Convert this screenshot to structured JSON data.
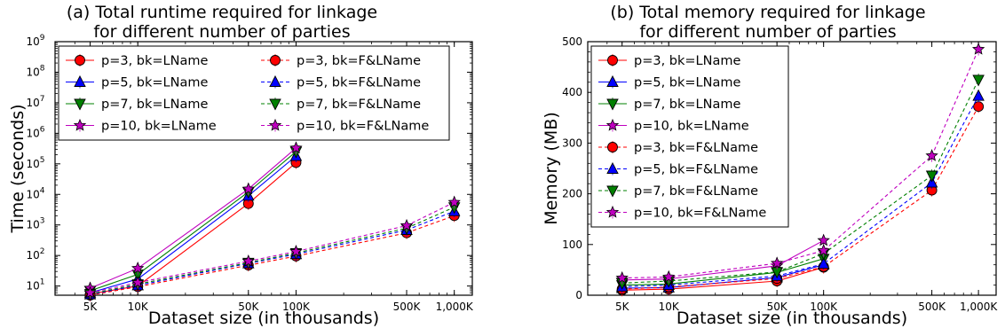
{
  "chart_data": [
    {
      "type": "line",
      "title": "(a) Total runtime required for linkage\nfor different number of parties",
      "xlabel": "Dataset size (in thousands)",
      "ylabel": "Time (seconds)",
      "xscale": "log",
      "yscale": "log",
      "xlim": [
        3000,
        1300000
      ],
      "ylim": [
        5,
        1000000000
      ],
      "xticks": [
        {
          "value": 5000,
          "label": "5K"
        },
        {
          "value": 10000,
          "label": "10K"
        },
        {
          "value": 50000,
          "label": "50K"
        },
        {
          "value": 100000,
          "label": "100K"
        },
        {
          "value": 500000,
          "label": "500K"
        },
        {
          "value": 1000000,
          "label": "1,000K"
        }
      ],
      "yticks": [
        {
          "value": 10,
          "base": "10",
          "exp": "1"
        },
        {
          "value": 100,
          "base": "10",
          "exp": "2"
        },
        {
          "value": 1000,
          "base": "10",
          "exp": "3"
        },
        {
          "value": 10000,
          "base": "10",
          "exp": "4"
        },
        {
          "value": 100000,
          "base": "10",
          "exp": "5"
        },
        {
          "value": 1000000,
          "base": "10",
          "exp": "6"
        },
        {
          "value": 10000000,
          "base": "10",
          "exp": "7"
        },
        {
          "value": 100000000,
          "base": "10",
          "exp": "8"
        },
        {
          "value": 1000000000,
          "base": "10",
          "exp": "9"
        }
      ],
      "legend": {
        "placement": "top-left",
        "columns": 2
      },
      "series": [
        {
          "name": "p=3, bk=LName",
          "color": "#ff0000",
          "marker": "circle",
          "dashed": false,
          "x": [
            5000,
            10000,
            50000,
            100000
          ],
          "y": [
            5.5,
            10,
            5000,
            110000
          ]
        },
        {
          "name": "p=5, bk=LName",
          "color": "#0000ff",
          "marker": "triangle-up",
          "dashed": false,
          "x": [
            5000,
            10000,
            50000,
            100000
          ],
          "y": [
            6,
            17,
            9000,
            180000
          ]
        },
        {
          "name": "p=7, bk=LName",
          "color": "#008000",
          "marker": "triangle-down",
          "dashed": false,
          "x": [
            5000,
            10000,
            50000,
            100000
          ],
          "y": [
            7,
            24,
            12000,
            250000
          ]
        },
        {
          "name": "p=10, bk=LName",
          "color": "#bf00bf",
          "marker": "star",
          "dashed": false,
          "x": [
            5000,
            10000,
            50000,
            100000
          ],
          "y": [
            8.5,
            38,
            15000,
            330000
          ]
        },
        {
          "name": "p=3, bk=F&LName",
          "color": "#ff0000",
          "marker": "circle",
          "dashed": true,
          "x": [
            5000,
            10000,
            50000,
            100000,
            500000,
            1000000
          ],
          "y": [
            5,
            9.5,
            48,
            95,
            550,
            2000
          ]
        },
        {
          "name": "p=5, bk=F&LName",
          "color": "#0000ff",
          "marker": "triangle-up",
          "dashed": true,
          "x": [
            5000,
            10000,
            50000,
            100000,
            500000,
            1000000
          ],
          "y": [
            5.3,
            10.5,
            55,
            110,
            680,
            2800
          ]
        },
        {
          "name": "p=7, bk=F&LName",
          "color": "#008000",
          "marker": "triangle-down",
          "dashed": true,
          "x": [
            5000,
            10000,
            50000,
            100000,
            500000,
            1000000
          ],
          "y": [
            5.5,
            11.5,
            58,
            120,
            780,
            3800
          ]
        },
        {
          "name": "p=10, bk=F&LName",
          "color": "#bf00bf",
          "marker": "star",
          "dashed": true,
          "x": [
            5000,
            10000,
            50000,
            100000,
            500000,
            1000000
          ],
          "y": [
            6,
            13,
            65,
            135,
            950,
            5500
          ]
        }
      ]
    },
    {
      "type": "line",
      "title": "(b) Total memory required for linkage\nfor different number of parties",
      "xlabel": "Dataset size (in thousands)",
      "ylabel": "Memory (MB)",
      "xscale": "log",
      "yscale": "linear",
      "xlim": [
        3000,
        1300000
      ],
      "ylim": [
        0,
        500
      ],
      "xticks": [
        {
          "value": 5000,
          "label": "5K"
        },
        {
          "value": 10000,
          "label": "10K"
        },
        {
          "value": 50000,
          "label": "50K"
        },
        {
          "value": 100000,
          "label": "100K"
        },
        {
          "value": 500000,
          "label": "500K"
        },
        {
          "value": 1000000,
          "label": "1,000K"
        }
      ],
      "yticks": [
        {
          "value": 0,
          "label": "0"
        },
        {
          "value": 100,
          "label": "100"
        },
        {
          "value": 200,
          "label": "200"
        },
        {
          "value": 300,
          "label": "300"
        },
        {
          "value": 400,
          "label": "400"
        },
        {
          "value": 500,
          "label": "500"
        }
      ],
      "legend": {
        "placement": "top-left",
        "columns": 1
      },
      "series": [
        {
          "name": "p=3, bk=LName",
          "color": "#ff0000",
          "marker": "circle",
          "dashed": false,
          "x": [
            5000,
            10000,
            50000,
            100000
          ],
          "y": [
            10,
            12,
            28,
            55
          ]
        },
        {
          "name": "p=5, bk=LName",
          "color": "#0000ff",
          "marker": "triangle-up",
          "dashed": false,
          "x": [
            5000,
            10000,
            50000,
            100000
          ],
          "y": [
            14,
            15,
            35,
            60
          ]
        },
        {
          "name": "p=7, bk=LName",
          "color": "#008000",
          "marker": "triangle-down",
          "dashed": false,
          "x": [
            5000,
            10000,
            50000,
            100000
          ],
          "y": [
            20,
            22,
            45,
            72
          ]
        },
        {
          "name": "p=10, bk=LName",
          "color": "#bf00bf",
          "marker": "star",
          "dashed": false,
          "x": [
            5000,
            10000,
            50000,
            100000
          ],
          "y": [
            30,
            32,
            58,
            108
          ]
        },
        {
          "name": "p=3, bk=F&LName",
          "color": "#ff0000",
          "marker": "circle",
          "dashed": true,
          "x": [
            5000,
            10000,
            50000,
            100000,
            500000,
            1000000
          ],
          "y": [
            12,
            16,
            33,
            56,
            207,
            372
          ]
        },
        {
          "name": "p=5, bk=F&LName",
          "color": "#0000ff",
          "marker": "triangle-up",
          "dashed": true,
          "x": [
            5000,
            10000,
            50000,
            100000,
            500000,
            1000000
          ],
          "y": [
            17,
            20,
            38,
            62,
            222,
            393
          ]
        },
        {
          "name": "p=7, bk=F&LName",
          "color": "#008000",
          "marker": "triangle-down",
          "dashed": true,
          "x": [
            5000,
            10000,
            50000,
            100000,
            500000,
            1000000
          ],
          "y": [
            24,
            28,
            46,
            82,
            236,
            425
          ]
        },
        {
          "name": "p=10, bk=F&LName",
          "color": "#bf00bf",
          "marker": "star",
          "dashed": true,
          "x": [
            5000,
            10000,
            50000,
            100000,
            500000,
            1000000
          ],
          "y": [
            34,
            36,
            63,
            88,
            275,
            485
          ]
        }
      ]
    }
  ]
}
